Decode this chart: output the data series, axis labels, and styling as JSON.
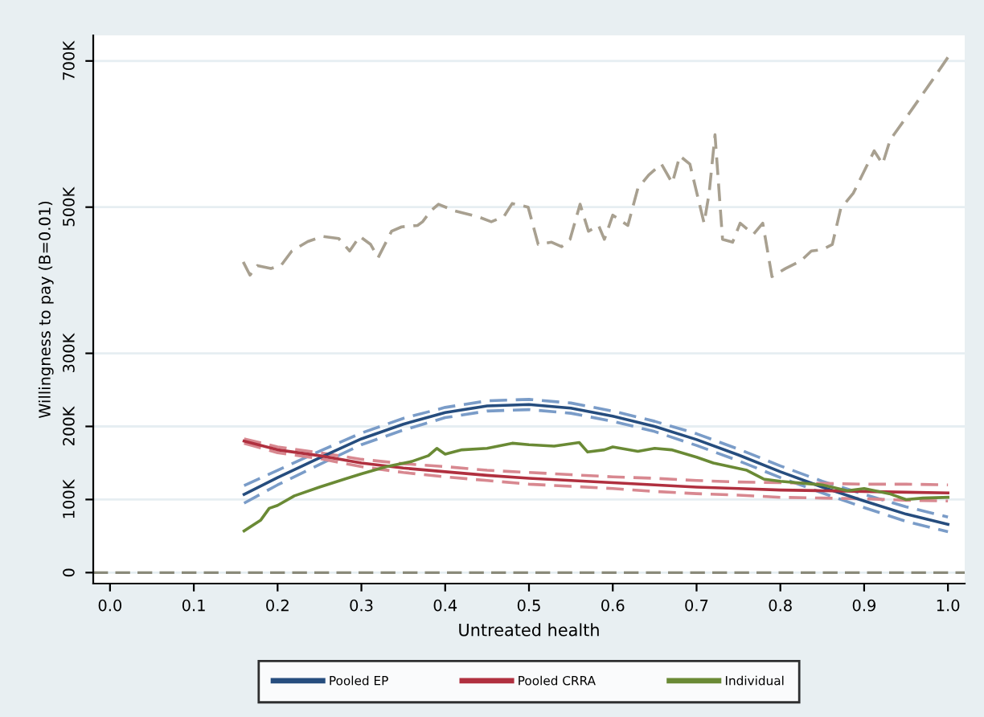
{
  "chart_data": {
    "type": "line",
    "xlabel": "Untreated health",
    "ylabel": "Willingness to pay (B=0.01)",
    "xlim": [
      -0.02,
      1.02
    ],
    "ylim": [
      -15000,
      735000
    ],
    "xticks": [
      {
        "value": 0,
        "label": "0.0"
      },
      {
        "value": 0.1,
        "label": "0.1"
      },
      {
        "value": 0.2,
        "label": "0.2"
      },
      {
        "value": 0.3,
        "label": "0.3"
      },
      {
        "value": 0.4,
        "label": "0.4"
      },
      {
        "value": 0.5,
        "label": "0.5"
      },
      {
        "value": 0.6,
        "label": "0.6"
      },
      {
        "value": 0.7,
        "label": "0.7"
      },
      {
        "value": 0.8,
        "label": "0.8"
      },
      {
        "value": 0.9,
        "label": "0.9"
      },
      {
        "value": 1,
        "label": "1.0"
      }
    ],
    "yticks": [
      0,
      {
        "value": 100000,
        "label": "100K"
      },
      {
        "value": 200000,
        "label": "200K"
      },
      {
        "value": 300000,
        "label": "300K"
      },
      {
        "value": 500000,
        "label": "500K"
      },
      {
        "value": 700000,
        "label": "700K"
      }
    ],
    "grid": "y",
    "legend": "bottom",
    "ref_lines": [
      {
        "axis": "y",
        "value": 0,
        "label": null,
        "color": "#8a8a7a",
        "line_style": "dashed"
      }
    ],
    "series": [
      {
        "color": "#a8a090",
        "line_style": "dashed",
        "x": [
          0.159,
          0.167,
          0.176,
          0.192,
          0.204,
          0.217,
          0.236,
          0.254,
          0.273,
          0.286,
          0.298,
          0.311,
          0.32,
          0.336,
          0.348,
          0.367,
          0.373,
          0.383,
          0.392,
          0.411,
          0.439,
          0.455,
          0.47,
          0.48,
          0.499,
          0.511,
          0.527,
          0.539,
          0.549,
          0.561,
          0.571,
          0.583,
          0.59,
          0.6,
          0.618,
          0.63,
          0.643,
          0.658,
          0.671,
          0.68,
          0.692,
          0.709,
          0.715,
          0.722,
          0.731,
          0.743,
          0.752,
          0.768,
          0.779,
          0.79,
          0.806,
          0.825,
          0.837,
          0.85,
          0.862,
          0.872,
          0.887,
          0.912,
          0.922,
          0.931,
          0.956,
          0.981,
          1.0
        ],
        "values": [
          425000,
          407000,
          420000,
          416000,
          420000,
          440000,
          453000,
          460000,
          457000,
          440000,
          460000,
          449000,
          431000,
          467000,
          473000,
          475000,
          480000,
          495000,
          504000,
          495000,
          487000,
          480000,
          487000,
          505000,
          500000,
          449000,
          452000,
          446000,
          456000,
          504000,
          467000,
          475000,
          456000,
          489000,
          475000,
          526000,
          544000,
          559000,
          533000,
          570000,
          559000,
          478000,
          519000,
          599000,
          456000,
          452000,
          478000,
          463000,
          478000,
          405000,
          416000,
          427000,
          440000,
          442000,
          449000,
          498000,
          519000,
          577000,
          559000,
          592000,
          632000,
          673000,
          705000
        ]
      },
      {
        "color": "#7a9cc8",
        "line_style": "dashed",
        "x": [
          0.16,
          0.2,
          0.25,
          0.3,
          0.35,
          0.4,
          0.45,
          0.5,
          0.55,
          0.6,
          0.65,
          0.7,
          0.75,
          0.8,
          0.85,
          0.9,
          0.95,
          1.0
        ],
        "values": [
          119000,
          140000,
          166000,
          191000,
          211000,
          226000,
          235000,
          237000,
          232000,
          221000,
          207000,
          190000,
          169000,
          146000,
          125000,
          107000,
          90000,
          76000
        ]
      },
      {
        "color": "#7a9cc8",
        "line_style": "dashed",
        "x": [
          0.16,
          0.2,
          0.25,
          0.3,
          0.35,
          0.4,
          0.45,
          0.5,
          0.55,
          0.6,
          0.65,
          0.7,
          0.75,
          0.8,
          0.85,
          0.9,
          0.95,
          1.0
        ],
        "values": [
          95000,
          120000,
          148000,
          175000,
          195000,
          212000,
          221000,
          223000,
          218000,
          207000,
          193000,
          174000,
          153000,
          130000,
          109000,
          89000,
          70000,
          56000
        ]
      },
      {
        "color": "#d88890",
        "line_style": "dashed",
        "x": [
          0.16,
          0.2,
          0.25,
          0.3,
          0.35,
          0.4,
          0.45,
          0.5,
          0.55,
          0.6,
          0.65,
          0.7,
          0.75,
          0.8,
          0.85,
          0.9,
          0.95,
          1.0
        ],
        "values": [
          183000,
          172000,
          164000,
          155000,
          149000,
          145000,
          140000,
          137000,
          134000,
          131000,
          129000,
          126000,
          124000,
          123000,
          122000,
          121000,
          121000,
          120000
        ]
      },
      {
        "color": "#d88890",
        "line_style": "dashed",
        "x": [
          0.16,
          0.2,
          0.25,
          0.3,
          0.35,
          0.4,
          0.45,
          0.5,
          0.55,
          0.6,
          0.65,
          0.7,
          0.75,
          0.8,
          0.85,
          0.9,
          0.95,
          1.0
        ],
        "values": [
          177000,
          164000,
          156000,
          145000,
          137000,
          131000,
          126000,
          121000,
          118000,
          115000,
          111000,
          108000,
          106000,
          103000,
          102000,
          101000,
          99000,
          98000
        ]
      },
      {
        "name": "Pooled EP",
        "color": "#264d7e",
        "line_style": "solid",
        "x": [
          0.16,
          0.2,
          0.25,
          0.3,
          0.35,
          0.4,
          0.45,
          0.5,
          0.55,
          0.6,
          0.65,
          0.7,
          0.75,
          0.8,
          0.85,
          0.9,
          0.95,
          1.0
        ],
        "values": [
          107000,
          130000,
          157000,
          183000,
          203000,
          219000,
          228000,
          230000,
          225000,
          214000,
          200000,
          182000,
          161000,
          138000,
          117000,
          98000,
          80000,
          66000
        ]
      },
      {
        "name": "Pooled CRRA",
        "color": "#b0303f",
        "line_style": "solid",
        "x": [
          0.16,
          0.2,
          0.25,
          0.3,
          0.35,
          0.4,
          0.45,
          0.5,
          0.55,
          0.6,
          0.65,
          0.7,
          0.75,
          0.8,
          0.85,
          0.9,
          0.95,
          1.0
        ],
        "values": [
          180000,
          168000,
          160000,
          150000,
          143000,
          138000,
          133000,
          129000,
          126000,
          123000,
          120000,
          117000,
          115000,
          113000,
          112000,
          111000,
          110000,
          109000
        ]
      },
      {
        "name": "Individual",
        "color": "#6a8a35",
        "line_style": "solid",
        "x": [
          0.16,
          0.18,
          0.19,
          0.2,
          0.22,
          0.25,
          0.28,
          0.3,
          0.33,
          0.36,
          0.38,
          0.39,
          0.4,
          0.42,
          0.45,
          0.48,
          0.5,
          0.53,
          0.56,
          0.57,
          0.59,
          0.6,
          0.63,
          0.65,
          0.67,
          0.7,
          0.72,
          0.74,
          0.76,
          0.78,
          0.8,
          0.85,
          0.88,
          0.9,
          0.93,
          0.95,
          0.97,
          1.0
        ],
        "values": [
          57000,
          72000,
          88000,
          92000,
          105000,
          117000,
          128000,
          135000,
          145000,
          152000,
          160000,
          170000,
          162000,
          168000,
          170000,
          177000,
          175000,
          173000,
          178000,
          165000,
          168000,
          172000,
          166000,
          170000,
          168000,
          158000,
          150000,
          145000,
          140000,
          128000,
          125000,
          120000,
          112000,
          115000,
          108000,
          100000,
          102000,
          103000
        ]
      }
    ]
  }
}
